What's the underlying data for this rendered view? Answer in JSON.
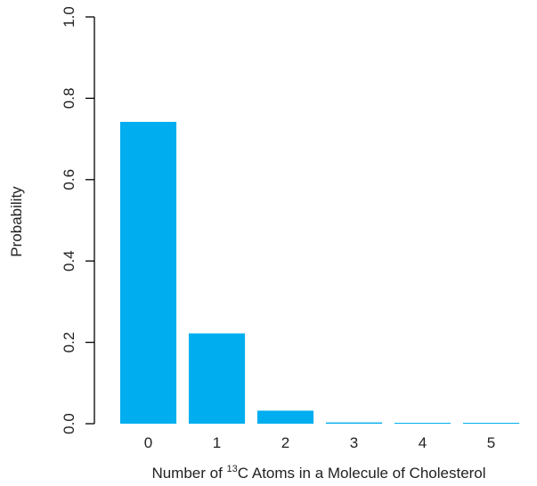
{
  "chart_data": {
    "type": "bar",
    "title": "",
    "xlabel": {
      "prefix": "Number of ",
      "superscript": "13",
      "suffix": "C Atoms in a Molecule of Cholesterol"
    },
    "ylabel": "Probability",
    "categories": [
      "0",
      "1",
      "2",
      "3",
      "4",
      "5"
    ],
    "values": [
      0.742,
      0.222,
      0.032,
      0.003,
      0.0002,
      1e-05
    ],
    "ylim": [
      0,
      1.0
    ],
    "yticks": [
      0.0,
      0.2,
      0.4,
      0.6,
      0.8,
      1.0
    ],
    "ytick_labels": [
      "0.0",
      "0.2",
      "0.4",
      "0.6",
      "0.8",
      "1.0"
    ],
    "grid": false,
    "bar_color": "#00aeef"
  }
}
